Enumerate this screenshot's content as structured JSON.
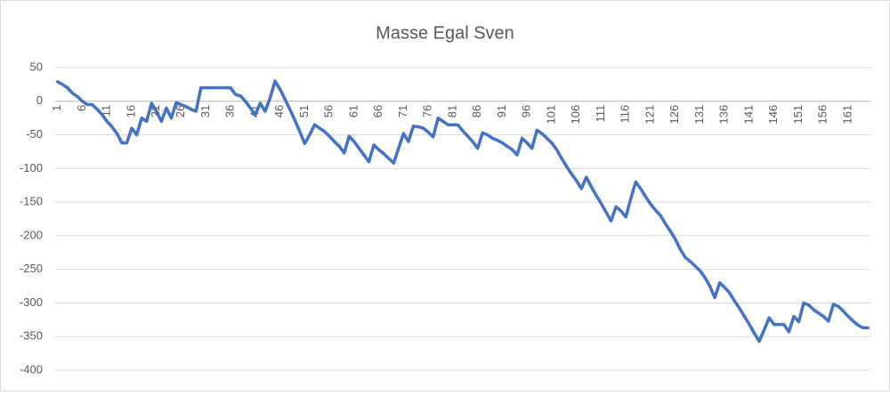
{
  "chart_data": {
    "type": "line",
    "title": "Masse Egal Sven",
    "categories": [
      1,
      null,
      null,
      null,
      null,
      6,
      null,
      null,
      null,
      null,
      11,
      null,
      null,
      null,
      null,
      16,
      null,
      null,
      null,
      null,
      21,
      null,
      null,
      null,
      null,
      26,
      null,
      null,
      null,
      null,
      31,
      null,
      null,
      null,
      null,
      36,
      null,
      null,
      null,
      null,
      41,
      null,
      null,
      null,
      null,
      46,
      null,
      null,
      null,
      null,
      51,
      null,
      null,
      null,
      null,
      56,
      null,
      null,
      null,
      null,
      61,
      null,
      null,
      null,
      null,
      66,
      null,
      null,
      null,
      null,
      71,
      null,
      null,
      null,
      null,
      76,
      null,
      null,
      null,
      null,
      81,
      null,
      null,
      null,
      null,
      86,
      null,
      null,
      null,
      null,
      91,
      null,
      null,
      null,
      null,
      96,
      null,
      null,
      null,
      null,
      101,
      null,
      null,
      null,
      null,
      106,
      null,
      null,
      null,
      null,
      111,
      null,
      null,
      null,
      null,
      116,
      null,
      null,
      null,
      null,
      121,
      null,
      null,
      null,
      null,
      126,
      null,
      null,
      null,
      null,
      131,
      null,
      null,
      null,
      null,
      136,
      null,
      null,
      null,
      null,
      141,
      null,
      null,
      null,
      null,
      146,
      null,
      null,
      null,
      null,
      151,
      null,
      null,
      null,
      null,
      156,
      null,
      null,
      null,
      null,
      161,
      null,
      null,
      null,
      null
    ],
    "values": [
      29,
      25,
      20,
      12,
      7,
      0,
      -5,
      -5,
      -12,
      -20,
      -30,
      -38,
      -48,
      -62,
      -62,
      -40,
      -50,
      -25,
      -30,
      -3,
      -15,
      -30,
      -10,
      -25,
      -2,
      -5,
      -8,
      -12,
      -15,
      20,
      20,
      20,
      20,
      20,
      20,
      20,
      10,
      8,
      0,
      -10,
      -20,
      -3,
      -15,
      5,
      30,
      18,
      3,
      -12,
      -28,
      -45,
      -63,
      -50,
      -35,
      -40,
      -45,
      -52,
      -60,
      -67,
      -77,
      -52,
      -60,
      -70,
      -80,
      -90,
      -65,
      -72,
      -78,
      -85,
      -92,
      -70,
      -48,
      -60,
      -37,
      -38,
      -40,
      -46,
      -53,
      -25,
      -30,
      -35,
      -35,
      -35,
      -44,
      -52,
      -60,
      -70,
      -47,
      -50,
      -55,
      -58,
      -62,
      -67,
      -72,
      -80,
      -55,
      -62,
      -70,
      -43,
      -48,
      -55,
      -62,
      -72,
      -85,
      -97,
      -108,
      -118,
      -130,
      -113,
      -127,
      -140,
      -152,
      -165,
      -178,
      -157,
      -163,
      -172,
      -145,
      -120,
      -130,
      -142,
      -153,
      -162,
      -170,
      -182,
      -193,
      -205,
      -220,
      -232,
      -238,
      -245,
      -252,
      -262,
      -275,
      -292,
      -270,
      -277,
      -285,
      -297,
      -308,
      -320,
      -332,
      -345,
      -357,
      -340,
      -322,
      -332,
      -332,
      -332,
      -343,
      -320,
      -328,
      -300,
      -303,
      -310,
      -315,
      -320,
      -327,
      -302,
      -305,
      -312,
      -320,
      -327,
      -333,
      -337,
      -337
    ],
    "color": "#4472c4",
    "ylim": [
      -400,
      50
    ],
    "yticks": [
      50,
      0,
      -50,
      -100,
      -150,
      -200,
      -250,
      -300,
      -350,
      -400
    ],
    "grid": true
  }
}
